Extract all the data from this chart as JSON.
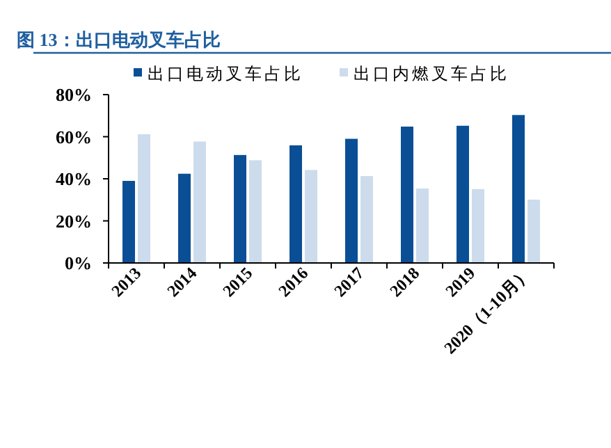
{
  "chart_data": {
    "type": "bar",
    "title": "图 13：出口电动叉车占比",
    "categories": [
      "2013",
      "2014",
      "2015",
      "2016",
      "2017",
      "2018",
      "2019",
      "2020（1-10月）"
    ],
    "series": [
      {
        "name": "出口电动叉车占比",
        "color": "#0a4f96",
        "values": [
          39,
          42.4,
          51.3,
          55.9,
          59,
          64.8,
          65.2,
          70.3
        ]
      },
      {
        "name": "出口内燃叉车占比",
        "color": "#cddcec",
        "values": [
          61.2,
          57.7,
          48.8,
          44.2,
          41.3,
          35.4,
          35.1,
          30.1
        ]
      }
    ],
    "ylim": [
      0,
      80
    ],
    "yticks": [
      {
        "value": 0,
        "label": "0%"
      },
      {
        "value": 20,
        "label": "20%"
      },
      {
        "value": 40,
        "label": "40%"
      },
      {
        "value": 60,
        "label": "60%"
      },
      {
        "value": 80,
        "label": "80%"
      }
    ],
    "legend": "top",
    "grid": false
  }
}
